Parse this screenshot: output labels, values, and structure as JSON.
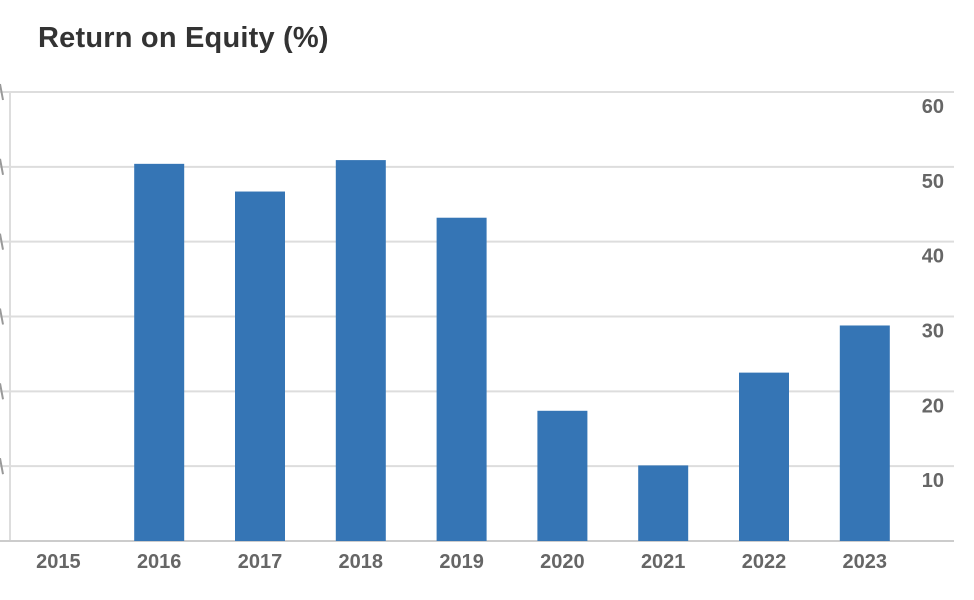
{
  "chart_data": {
    "type": "bar",
    "title": "Return on Equity (%)",
    "xlabel": "",
    "ylabel": "",
    "categories": [
      "2015",
      "2016",
      "2017",
      "2018",
      "2019",
      "2020",
      "2021",
      "2022",
      "2023"
    ],
    "series": [
      {
        "values": [
          null,
          50.4,
          46.7,
          50.9,
          43.2,
          17.4,
          10.1,
          22.5,
          28.8
        ],
        "color": "#3575b5"
      }
    ],
    "ylim": [
      0,
      60
    ],
    "yticks": [
      10,
      20,
      30,
      40,
      50,
      60
    ],
    "grid": true,
    "y_axis_position": "right",
    "legend": "none",
    "colors": {
      "bar": "#3575b5",
      "grid": "#dddddd",
      "tick_text": "#666666",
      "title_text": "#333333"
    }
  }
}
